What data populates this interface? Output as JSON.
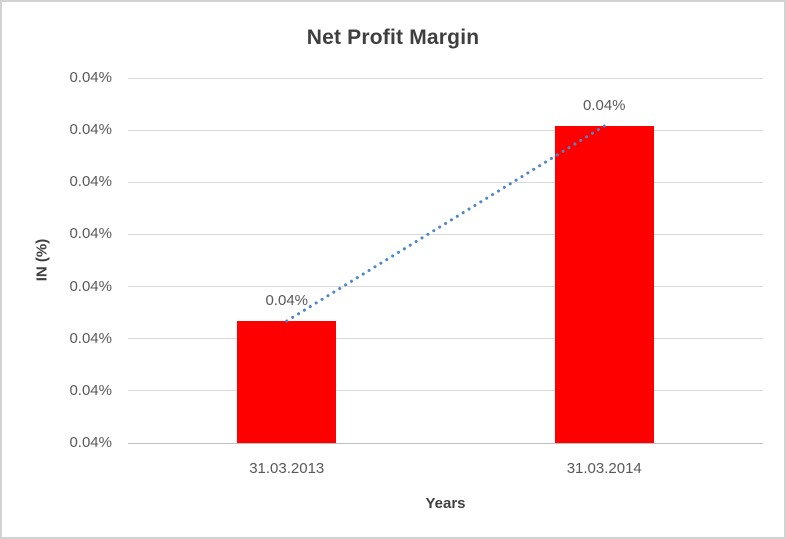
{
  "frame": {
    "background": "#ffffff",
    "border_color": "#d2d2d2"
  },
  "chart_data": {
    "type": "bar",
    "title": "Net Profit Margin",
    "xlabel": "Years",
    "ylabel": "IN (%)",
    "categories": [
      "31.03.2013",
      "31.03.2014"
    ],
    "series": [
      {
        "name": "Net Profit Margin",
        "values_display": [
          "0.04%",
          "0.04%"
        ],
        "relative_heights": [
          0.334,
          0.868
        ]
      }
    ],
    "data_labels": [
      "0.04%",
      "0.04%"
    ],
    "y_tick_labels_top_to_bottom": [
      "0.04%",
      "0.04%",
      "0.04%",
      "0.04%",
      "0.04%",
      "0.04%",
      "0.04%",
      "0.04%"
    ],
    "gridlines": true,
    "legend": "none",
    "trendline": {
      "type": "linear",
      "style": "dotted",
      "connects": "tops of the two bars"
    },
    "colors": {
      "bar": "#ff0000",
      "trendline": "#4e87c9",
      "gridline": "#d9d9d9",
      "axis_line": "#bfbfbf",
      "title_text": "#3f3f3f",
      "axis_text": "#595959"
    }
  }
}
